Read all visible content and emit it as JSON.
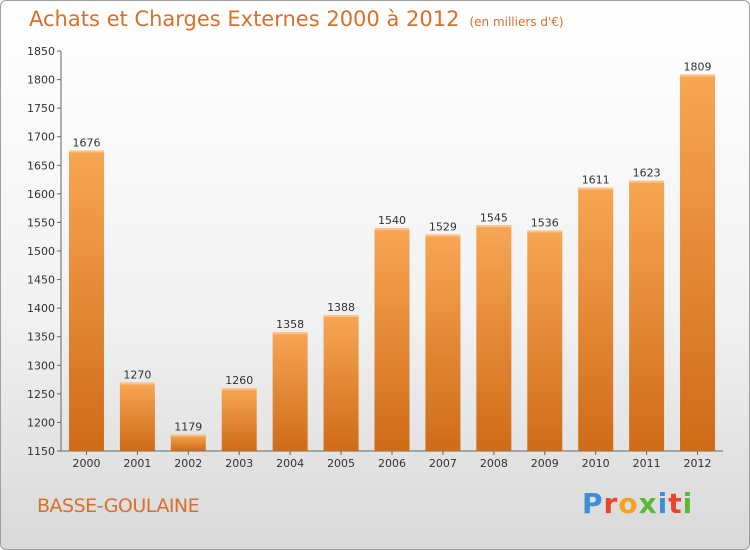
{
  "header": {
    "title": "Achats et Charges Externes 2000 à 2012",
    "unit": "(en milliers d'€)"
  },
  "footer": {
    "town": "BASSE-GOULAINE",
    "brand": "Proxiti",
    "brand_colors": [
      "#3a8fd8",
      "#e8452c",
      "#f2a21c",
      "#5db83a",
      "#3a8fd8",
      "#e8452c",
      "#5db83a"
    ]
  },
  "chart_data": {
    "type": "bar",
    "title": "Achats et Charges Externes 2000 à 2012",
    "subtitle": "(en milliers d'€)",
    "categories": [
      "2000",
      "2001",
      "2002",
      "2003",
      "2004",
      "2005",
      "2006",
      "2007",
      "2008",
      "2009",
      "2010",
      "2011",
      "2012"
    ],
    "values": [
      1676,
      1270,
      1179,
      1260,
      1358,
      1388,
      1540,
      1529,
      1545,
      1536,
      1611,
      1623,
      1809
    ],
    "yticks": [
      1150,
      1200,
      1250,
      1300,
      1350,
      1400,
      1450,
      1500,
      1550,
      1600,
      1650,
      1700,
      1750,
      1800,
      1850
    ],
    "ylim": [
      1150,
      1850
    ],
    "grid": false,
    "bar_color_top": "#f7a654",
    "bar_color_bottom": "#cf6b17"
  }
}
